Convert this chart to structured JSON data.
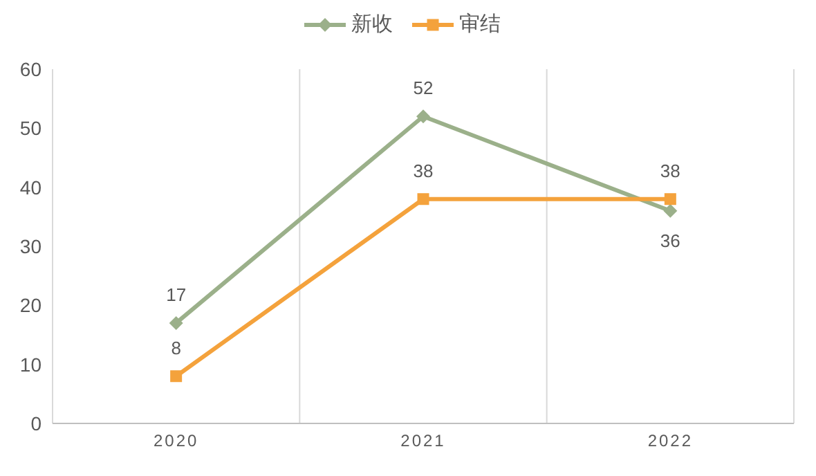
{
  "chart_data": {
    "type": "line",
    "categories": [
      "2020",
      "2021",
      "2022"
    ],
    "series": [
      {
        "name": "新收",
        "color": "#9bb08a",
        "values": [
          17,
          52,
          36
        ],
        "marker": "diamond"
      },
      {
        "name": "审结",
        "color": "#f4a23c",
        "values": [
          8,
          38,
          38
        ],
        "marker": "square"
      }
    ],
    "ylim": [
      0,
      60
    ],
    "yticks": [
      0,
      10,
      20,
      30,
      40,
      50,
      60
    ],
    "grid": "x",
    "legend": "top",
    "data_labels": true
  }
}
